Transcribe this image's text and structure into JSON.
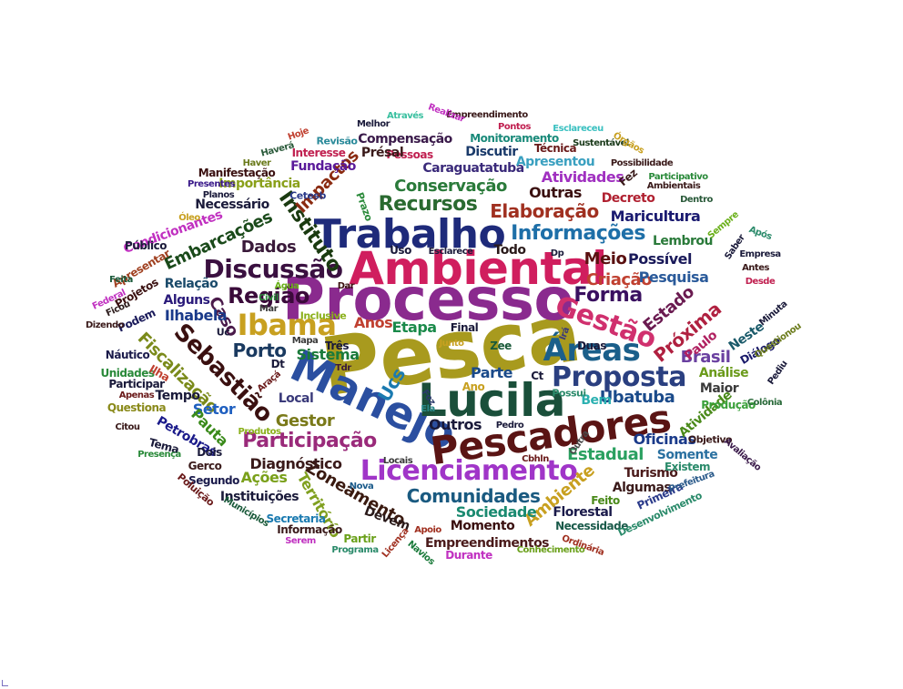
{
  "words": [
    {
      "text": "Pesca",
      "color": "#a89a1e"
    },
    {
      "text": "Processo",
      "color": "#8a2a8e"
    },
    {
      "text": "Ambiental",
      "color": "#d01e5e"
    },
    {
      "text": "Manejo",
      "color": "#2b4fa0"
    },
    {
      "text": "Lucila",
      "color": "#1a4f3a"
    },
    {
      "text": "Trabalho",
      "color": "#1e2a7a"
    },
    {
      "text": "Pescadores",
      "color": "#5a1414"
    },
    {
      "text": "Licenciamento",
      "color": "#a035c8"
    },
    {
      "text": "Discussão",
      "color": "#3a1040"
    },
    {
      "text": "Ibama",
      "color": "#c8a020"
    },
    {
      "text": "Proposta",
      "color": "#2a3f80"
    },
    {
      "text": "Gestão",
      "color": "#d0306e"
    },
    {
      "text": "Áreas",
      "color": "#1a5f8a"
    },
    {
      "text": "Região",
      "color": "#3a0a3a"
    },
    {
      "text": "Informações",
      "color": "#1e6fa8"
    },
    {
      "text": "Recursos",
      "color": "#2a6a30"
    },
    {
      "text": "Sebastião",
      "color": "#3a1010"
    },
    {
      "text": "Participação",
      "color": "#9a2a7a"
    },
    {
      "text": "Próxima",
      "color": "#b02040"
    },
    {
      "text": "Instituto",
      "color": "#1a3a10"
    },
    {
      "text": "Comunidades",
      "color": "#1a5a80"
    },
    {
      "text": "Zoneamento",
      "color": "#3a1a10"
    },
    {
      "text": "Estado",
      "color": "#6a1a50"
    },
    {
      "text": "Forma",
      "color": "#3a1060"
    },
    {
      "text": "Elaboração",
      "color": "#a03020"
    },
    {
      "text": "Conservação",
      "color": "#2a7a3a"
    },
    {
      "text": "Embarcações",
      "color": "#1a4a1a"
    },
    {
      "text": "Impactos",
      "color": "#8a2a10"
    },
    {
      "text": "Fiscalização",
      "color": "#7a8a1a"
    },
    {
      "text": "Ambiente",
      "color": "#c8a020"
    },
    {
      "text": "Ubatuba",
      "color": "#1a4a8a"
    },
    {
      "text": "Estadual",
      "color": "#2aa060"
    },
    {
      "text": "Porto",
      "color": "#1a3a60"
    },
    {
      "text": "Gestor",
      "color": "#7a7a1a"
    },
    {
      "text": "Diagnóstico",
      "color": "#3a1a1a"
    },
    {
      "text": "Maricultura",
      "color": "#1a1a70"
    },
    {
      "text": "Caraguatatuba",
      "color": "#3a2a7a"
    },
    {
      "text": "Meio",
      "color": "#5a1010"
    },
    {
      "text": "Criação",
      "color": "#c04030"
    },
    {
      "text": "Possível",
      "color": "#1a1a5a"
    },
    {
      "text": "Atividades",
      "color": "#a030c0"
    },
    {
      "text": "Compensação",
      "color": "#3a1a4a"
    },
    {
      "text": "Territórío",
      "color": "#80a020"
    },
    {
      "text": "Sociedade",
      "color": "#1a8a70"
    },
    {
      "text": "Oficinas",
      "color": "#1a3a8a"
    },
    {
      "text": "Brasil",
      "color": "#6a40a0"
    },
    {
      "text": "Dados",
      "color": "#3a1a3a"
    },
    {
      "text": "Outros",
      "color": "#1a1a3a"
    },
    {
      "text": "Importância",
      "color": "#8aa01a"
    },
    {
      "text": "Ucs",
      "color": "#1a7ab0"
    },
    {
      "text": "Etapa",
      "color": "#1a8a4a"
    },
    {
      "text": "Setor",
      "color": "#2060c0"
    },
    {
      "text": "Pauta",
      "color": "#3a8a1a"
    },
    {
      "text": "Caso",
      "color": "#4a1a4a"
    },
    {
      "text": "Ilhabela",
      "color": "#1a3a8a"
    },
    {
      "text": "Turismo",
      "color": "#4a1a1a"
    },
    {
      "text": "Pesquisa",
      "color": "#2a5a9a"
    },
    {
      "text": "Análise",
      "color": "#6a9a1a"
    },
    {
      "text": "Atividade",
      "color": "#4a8a1a"
    },
    {
      "text": "Maior",
      "color": "#3a3a3a"
    },
    {
      "text": "Algumas",
      "color": "#3a1a1a"
    },
    {
      "text": "Ações",
      "color": "#7aa01a"
    },
    {
      "text": "Fundação",
      "color": "#5a1a9a"
    },
    {
      "text": "Alguns",
      "color": "#2a1a7a"
    },
    {
      "text": "Relação",
      "color": "#1a4a6a"
    },
    {
      "text": "Discutir",
      "color": "#1a3a6a"
    },
    {
      "text": "Monitoramento",
      "color": "#1a8a7a"
    },
    {
      "text": "Apresentou",
      "color": "#3aa0c0"
    },
    {
      "text": "Decreto",
      "color": "#b02030"
    },
    {
      "text": "Outras",
      "color": "#3a1010"
    },
    {
      "text": "Momento",
      "color": "#3a1010"
    },
    {
      "text": "Empreendimentos",
      "color": "#4a1a1a"
    },
    {
      "text": "Devem",
      "color": "#2a1a1a"
    },
    {
      "text": "Necessidade",
      "color": "#1a5a4a"
    },
    {
      "text": "Florestal",
      "color": "#1a1a4a"
    },
    {
      "text": "Petrobras",
      "color": "#1a1a8a"
    },
    {
      "text": "Tempo",
      "color": "#1a1a3a"
    },
    {
      "text": "Paulo",
      "color": "#b02060"
    },
    {
      "text": "Neste",
      "color": "#1a5a6a"
    },
    {
      "text": "Parte",
      "color": "#1a4a8a"
    },
    {
      "text": "Bem",
      "color": "#2ab0b0"
    },
    {
      "text": "Produção",
      "color": "#3aa03a"
    },
    {
      "text": "Somente",
      "color": "#2a70a0"
    },
    {
      "text": "Secretaria",
      "color": "#1a7ab0"
    },
    {
      "text": "Instituições",
      "color": "#1a1a3a"
    },
    {
      "text": "Necessário",
      "color": "#1a1a3a"
    },
    {
      "text": "Condicionantes",
      "color": "#c030c0"
    },
    {
      "text": "Manifestação",
      "color": "#3a1010"
    },
    {
      "text": "Interesse",
      "color": "#c02050"
    },
    {
      "text": "Pessoas",
      "color": "#c02050"
    },
    {
      "text": "Técnica",
      "color": "#6a1a1a"
    },
    {
      "text": "Présal",
      "color": "#3a1a1a"
    },
    {
      "text": "Diálogo",
      "color": "#1a1a6a"
    },
    {
      "text": "Lembrou",
      "color": "#2a7a3a"
    },
    {
      "text": "Todo",
      "color": "#2a1a1a"
    },
    {
      "text": "Anos",
      "color": "#c04030"
    },
    {
      "text": "Uso",
      "color": "#1a1a3a"
    },
    {
      "text": "Local",
      "color": "#3a3a7a"
    },
    {
      "text": "Feito",
      "color": "#4a8a1a"
    },
    {
      "text": "Partir",
      "color": "#6aa01a"
    },
    {
      "text": "Informação",
      "color": "#3a1a1a"
    },
    {
      "text": "Segundo",
      "color": "#1a1a4a"
    },
    {
      "text": "Sistema",
      "color": "#1a7a3a"
    },
    {
      "text": "Ano",
      "color": "#c8a020"
    },
    {
      "text": "Dois",
      "color": "#1a1a3a"
    },
    {
      "text": "Gerco",
      "color": "#3a1a1a"
    },
    {
      "text": "Participar",
      "color": "#1a1a3a"
    },
    {
      "text": "Questiona",
      "color": "#8a8a1a"
    },
    {
      "text": "Unidades",
      "color": "#2a8a3a"
    },
    {
      "text": "Náutico",
      "color": "#1a1a4a"
    },
    {
      "text": "Público",
      "color": "#1a1a3a"
    },
    {
      "text": "Apresentar",
      "color": "#a04020"
    },
    {
      "text": "Federal",
      "color": "#c030c0"
    },
    {
      "text": "Projetos",
      "color": "#3a1010"
    },
    {
      "text": "Podem",
      "color": "#1a1a5a"
    },
    {
      "text": "Dizendo",
      "color": "#3a1a1a"
    },
    {
      "text": "Inclusive",
      "color": "#8ab01a"
    },
    {
      "text": "Final",
      "color": "#1a1a3a"
    },
    {
      "text": "Duas",
      "color": "#1a1a3a"
    },
    {
      "text": "Mar",
      "color": "#3a3a3a"
    },
    {
      "text": "Mapa",
      "color": "#3a3a3a"
    },
    {
      "text": "Três",
      "color": "#1a1a3a"
    },
    {
      "text": "Ilha",
      "color": "#c04030"
    },
    {
      "text": "Apenas",
      "color": "#6a1a1a"
    },
    {
      "text": "Produtos",
      "color": "#8ab01a"
    },
    {
      "text": "Tema",
      "color": "#1a1a3a"
    },
    {
      "text": "Presença",
      "color": "#2a8a3a"
    },
    {
      "text": "Poluição",
      "color": "#6a1a1a"
    },
    {
      "text": "Municípios",
      "color": "#1a5a3a"
    },
    {
      "text": "Serem",
      "color": "#c030c0"
    },
    {
      "text": "Programa",
      "color": "#2a8a6a"
    },
    {
      "text": "Durante",
      "color": "#c030c0"
    },
    {
      "text": "Conhecimento",
      "color": "#6aa01a"
    },
    {
      "text": "Ordinária",
      "color": "#a03020"
    },
    {
      "text": "Desenvolvimento",
      "color": "#2a8a6a"
    },
    {
      "text": "Primeira",
      "color": "#2a3a8a"
    },
    {
      "text": "Prefeitura",
      "color": "#2a5a8a"
    },
    {
      "text": "Existem",
      "color": "#2a8a6a"
    },
    {
      "text": "Objetivo",
      "color": "#3a1a1a"
    },
    {
      "text": "Avaliação",
      "color": "#3a1a4a"
    },
    {
      "text": "Colônia",
      "color": "#2a6a3a"
    },
    {
      "text": "Pediu",
      "color": "#1a1a3a"
    },
    {
      "text": "Questionou",
      "color": "#6a7a1a"
    },
    {
      "text": "Minuta",
      "color": "#1a1a3a"
    },
    {
      "text": "Desde",
      "color": "#c02050"
    },
    {
      "text": "Antes",
      "color": "#3a1a1a"
    },
    {
      "text": "Empresa",
      "color": "#1a1a3a"
    },
    {
      "text": "Saber",
      "color": "#1a1a3a"
    },
    {
      "text": "Após",
      "color": "#2a8a6a"
    },
    {
      "text": "Sempre",
      "color": "#6ab01a"
    },
    {
      "text": "Dentro",
      "color": "#2a5a3a"
    },
    {
      "text": "Participativo",
      "color": "#2a8a3a"
    },
    {
      "text": "Ambientais",
      "color": "#3a1a1a"
    },
    {
      "text": "Possibilidade",
      "color": "#3a1a1a"
    },
    {
      "text": "Sustentável",
      "color": "#1a3a1a"
    },
    {
      "text": "Órgãos",
      "color": "#c8a020"
    },
    {
      "text": "Esclareceu",
      "color": "#3ac0c0"
    },
    {
      "text": "Pontos",
      "color": "#c02050"
    },
    {
      "text": "Empreendimento",
      "color": "#3a1a1a"
    },
    {
      "text": "Realizar",
      "color": "#c030c0"
    },
    {
      "text": "Através",
      "color": "#3ac0a0"
    },
    {
      "text": "Melhor",
      "color": "#1a1a3a"
    },
    {
      "text": "Revisão",
      "color": "#2a8a9a"
    },
    {
      "text": "Hoje",
      "color": "#c04030"
    },
    {
      "text": "Haverá",
      "color": "#2a5a3a"
    },
    {
      "text": "Haver",
      "color": "#6a7a1a"
    },
    {
      "text": "Presentes",
      "color": "#3a1a8a"
    },
    {
      "text": "Planos",
      "color": "#1a1a3a"
    },
    {
      "text": "Cetesb",
      "color": "#2a3a8a"
    },
    {
      "text": "Prazo",
      "color": "#2a8a3a"
    },
    {
      "text": "Óleo",
      "color": "#c8a020"
    },
    {
      "text": "Esclarece",
      "color": "#1a1a3a"
    },
    {
      "text": "Dp",
      "color": "#1a1a3a"
    },
    {
      "text": "Civil",
      "color": "#2a8a3a"
    },
    {
      "text": "Água",
      "color": "#6ab01a"
    },
    {
      "text": "Dar",
      "color": "#3a1010"
    },
    {
      "text": "Uc",
      "color": "#1a1a3a"
    },
    {
      "text": "Feita",
      "color": "#1a5a3a"
    },
    {
      "text": "Ficou",
      "color": "#2a1a1a"
    },
    {
      "text": "Citou",
      "color": "#3a1a1a"
    },
    {
      "text": "Zee",
      "color": "#1a5a3a"
    },
    {
      "text": "Ct",
      "color": "#1a1a3a"
    },
    {
      "text": "Irá",
      "color": "#3a3a7a"
    },
    {
      "text": "Tdr",
      "color": "#3a1a3a"
    },
    {
      "text": "Dt",
      "color": "#1a1a3a"
    },
    {
      "text": "Araçá",
      "color": "#6a1a1a"
    },
    {
      "text": "Foz",
      "color": "#2a3a6a"
    },
    {
      "text": "Ela",
      "color": "#2a8a8a"
    },
    {
      "text": "Possui",
      "color": "#2a8a6a"
    },
    {
      "text": "Pedro",
      "color": "#1a1a3a"
    },
    {
      "text": "Outra",
      "color": "#4a4a4a"
    },
    {
      "text": "Cbhln",
      "color": "#6a1a1a"
    },
    {
      "text": "Locais",
      "color": "#3a3a3a"
    },
    {
      "text": "Nova",
      "color": "#1a5a8a"
    },
    {
      "text": "Apoio",
      "color": "#a03020"
    },
    {
      "text": "Licença",
      "color": "#a03020"
    },
    {
      "text": "Navios",
      "color": "#1a7a3a"
    },
    {
      "text": "Fez",
      "color": "#3a1a1a"
    },
    {
      "text": "Junto",
      "color": "#c8a020"
    }
  ]
}
